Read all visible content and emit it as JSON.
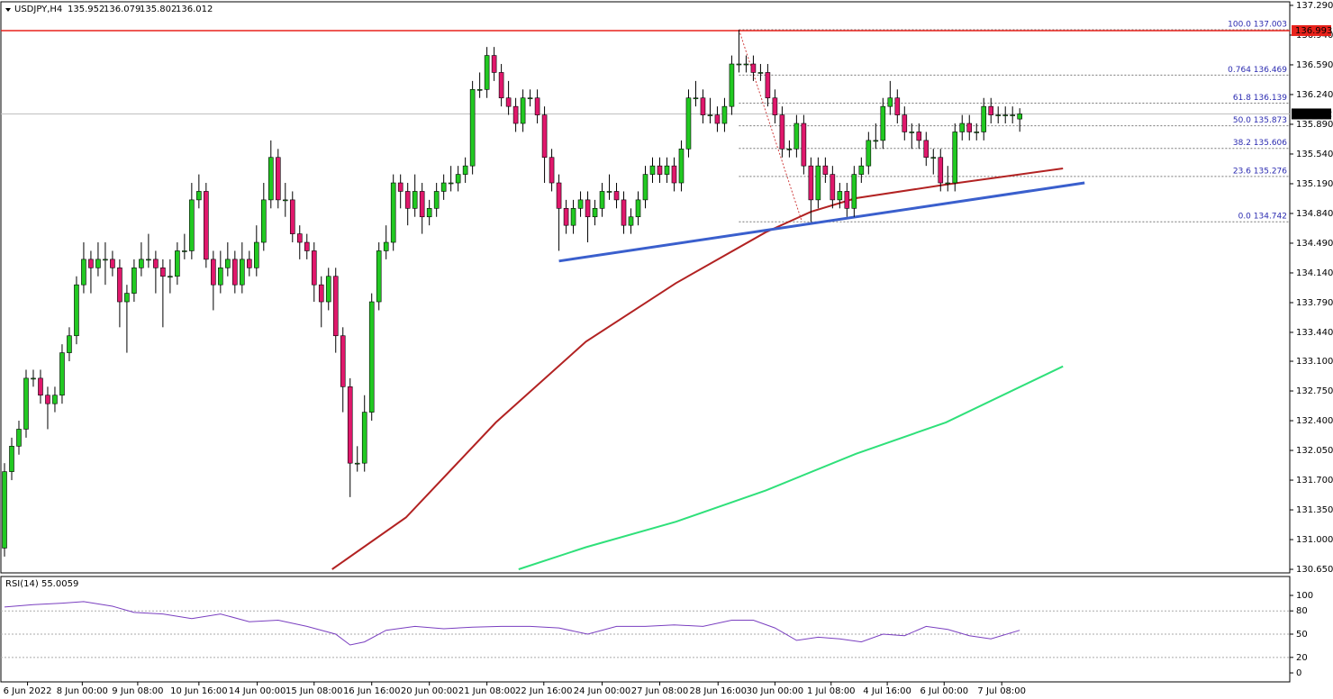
{
  "chart_data": {
    "type": "candlestick",
    "symbol": "USDJPY,H4",
    "up_color": "#22c922",
    "down_color": "#e0186c",
    "xlim": [
      -0.5,
      178.5
    ],
    "ylim": [
      130.608,
      137.332
    ],
    "yticks": [
      {
        "value": 137.29,
        "label": "137.290"
      },
      {
        "value": 136.94,
        "label": "136.940"
      },
      {
        "value": 136.59,
        "label": "136.590"
      },
      {
        "value": 136.24,
        "label": "136.240"
      },
      {
        "value": 135.89,
        "label": "135.890"
      },
      {
        "value": 135.54,
        "label": "135.540"
      },
      {
        "value": 135.19,
        "label": "135.190"
      },
      {
        "value": 134.84,
        "label": "134.840"
      },
      {
        "value": 134.49,
        "label": "134.490"
      },
      {
        "value": 134.14,
        "label": "134.140"
      },
      {
        "value": 133.79,
        "label": "133.790"
      },
      {
        "value": 133.44,
        "label": "133.440"
      },
      {
        "value": 133.1,
        "label": "133.100"
      },
      {
        "value": 132.75,
        "label": "132.750"
      },
      {
        "value": 132.4,
        "label": "132.400"
      },
      {
        "value": 132.05,
        "label": "132.050"
      },
      {
        "value": 131.7,
        "label": "131.700"
      },
      {
        "value": 131.35,
        "label": "131.350"
      },
      {
        "value": 131.0,
        "label": "131.000"
      },
      {
        "value": 130.65,
        "label": "130.650"
      }
    ],
    "xticks": [
      {
        "value": 3.2,
        "label": "6 Jun 2022"
      },
      {
        "value": 10.8,
        "label": "8 Jun 00:00"
      },
      {
        "value": 18.5,
        "label": "9 Jun 08:00"
      },
      {
        "value": 27,
        "label": "10 Jun 16:00"
      },
      {
        "value": 35.1,
        "label": "14 Jun 00:00"
      },
      {
        "value": 43,
        "label": "15 Jun 08:00"
      },
      {
        "value": 51,
        "label": "16 Jun 16:00"
      },
      {
        "value": 59,
        "label": "20 Jun 00:00"
      },
      {
        "value": 67,
        "label": "21 Jun 08:00"
      },
      {
        "value": 74.9,
        "label": "22 Jun 16:00"
      },
      {
        "value": 83,
        "label": "24 Jun 00:00"
      },
      {
        "value": 91,
        "label": "27 Jun 08:00"
      },
      {
        "value": 99.1,
        "label": "28 Jun 16:00"
      },
      {
        "value": 107,
        "label": "30 Jun 00:00"
      },
      {
        "value": 114.8,
        "label": "1 Jul 08:00"
      },
      {
        "value": 122.6,
        "label": "4 Jul 16:00"
      },
      {
        "value": 130.5,
        "label": "6 Jul 00:00"
      },
      {
        "value": 138.5,
        "label": "7 Jul 08:00"
      }
    ],
    "ohlc": [
      [
        130.9,
        131.9,
        130.8,
        131.8
      ],
      [
        131.8,
        132.2,
        131.7,
        132.1
      ],
      [
        132.1,
        132.4,
        132.0,
        132.3
      ],
      [
        132.3,
        133.0,
        132.2,
        132.9
      ],
      [
        132.9,
        133.0,
        132.8,
        132.9
      ],
      [
        132.9,
        133.0,
        132.6,
        132.7
      ],
      [
        132.7,
        132.8,
        132.3,
        132.6
      ],
      [
        132.6,
        132.8,
        132.5,
        132.7
      ],
      [
        132.7,
        133.3,
        132.6,
        133.2
      ],
      [
        133.2,
        133.5,
        133.1,
        133.4
      ],
      [
        133.4,
        134.1,
        133.3,
        134.0
      ],
      [
        134.0,
        134.5,
        133.9,
        134.3
      ],
      [
        134.3,
        134.4,
        133.9,
        134.2
      ],
      [
        134.2,
        134.5,
        134.1,
        134.3
      ],
      [
        134.3,
        134.5,
        134.0,
        134.3
      ],
      [
        134.3,
        134.4,
        134.1,
        134.2
      ],
      [
        134.2,
        134.3,
        133.5,
        133.8
      ],
      [
        133.8,
        134.0,
        133.2,
        133.9
      ],
      [
        133.9,
        134.3,
        133.8,
        134.2
      ],
      [
        134.2,
        134.5,
        134.1,
        134.3
      ],
      [
        134.3,
        134.6,
        134.2,
        134.3
      ],
      [
        134.3,
        134.4,
        133.9,
        134.2
      ],
      [
        134.2,
        134.3,
        133.5,
        134.1
      ],
      [
        134.1,
        134.3,
        133.9,
        134.1
      ],
      [
        134.1,
        134.5,
        134.0,
        134.4
      ],
      [
        134.4,
        134.6,
        134.3,
        134.4
      ],
      [
        134.4,
        135.2,
        134.3,
        135.0
      ],
      [
        135.0,
        135.3,
        134.9,
        135.1
      ],
      [
        135.1,
        135.2,
        134.2,
        134.3
      ],
      [
        134.3,
        134.4,
        133.7,
        134.0
      ],
      [
        134.0,
        134.4,
        133.9,
        134.2
      ],
      [
        134.2,
        134.5,
        134.1,
        134.3
      ],
      [
        134.3,
        134.4,
        133.9,
        134.0
      ],
      [
        134.0,
        134.5,
        133.9,
        134.3
      ],
      [
        134.3,
        134.4,
        134.1,
        134.2
      ],
      [
        134.2,
        134.7,
        134.1,
        134.5
      ],
      [
        134.5,
        135.2,
        134.4,
        135.0
      ],
      [
        135.0,
        135.7,
        134.9,
        135.5
      ],
      [
        135.5,
        135.6,
        134.9,
        135.0
      ],
      [
        135.0,
        135.2,
        134.8,
        135.0
      ],
      [
        135.0,
        135.1,
        134.5,
        134.6
      ],
      [
        134.6,
        134.7,
        134.3,
        134.5
      ],
      [
        134.5,
        134.6,
        134.3,
        134.4
      ],
      [
        134.4,
        134.5,
        133.8,
        134.0
      ],
      [
        134.0,
        134.1,
        133.5,
        133.8
      ],
      [
        133.8,
        134.2,
        133.7,
        134.1
      ],
      [
        134.1,
        134.2,
        133.2,
        133.4
      ],
      [
        133.4,
        133.5,
        132.5,
        132.8
      ],
      [
        132.8,
        132.9,
        131.5,
        131.9
      ],
      [
        131.9,
        132.1,
        131.8,
        131.9
      ],
      [
        131.9,
        132.7,
        131.8,
        132.5
      ],
      [
        132.5,
        133.9,
        132.4,
        133.8
      ],
      [
        133.8,
        134.5,
        133.7,
        134.4
      ],
      [
        134.4,
        134.7,
        134.3,
        134.5
      ],
      [
        134.5,
        135.3,
        134.4,
        135.2
      ],
      [
        135.2,
        135.3,
        134.9,
        135.1
      ],
      [
        135.1,
        135.2,
        134.7,
        134.9
      ],
      [
        134.9,
        135.3,
        134.8,
        135.1
      ],
      [
        135.1,
        135.2,
        134.6,
        134.8
      ],
      [
        134.8,
        135.0,
        134.7,
        134.9
      ],
      [
        134.9,
        135.2,
        134.8,
        135.1
      ],
      [
        135.1,
        135.3,
        135.0,
        135.2
      ],
      [
        135.2,
        135.4,
        135.1,
        135.2
      ],
      [
        135.2,
        135.4,
        135.1,
        135.3
      ],
      [
        135.3,
        135.5,
        135.2,
        135.4
      ],
      [
        135.4,
        136.4,
        135.3,
        136.3
      ],
      [
        136.3,
        136.5,
        136.2,
        136.3
      ],
      [
        136.3,
        136.8,
        136.2,
        136.7
      ],
      [
        136.7,
        136.8,
        136.4,
        136.5
      ],
      [
        136.5,
        136.6,
        136.1,
        136.2
      ],
      [
        136.2,
        136.4,
        136.0,
        136.1
      ],
      [
        136.1,
        136.2,
        135.8,
        135.9
      ],
      [
        135.9,
        136.3,
        135.8,
        136.2
      ],
      [
        136.2,
        136.3,
        136.1,
        136.2
      ],
      [
        136.2,
        136.3,
        135.9,
        136.0
      ],
      [
        136.0,
        136.1,
        135.2,
        135.5
      ],
      [
        135.5,
        135.6,
        135.1,
        135.2
      ],
      [
        135.2,
        135.3,
        134.4,
        134.9
      ],
      [
        134.9,
        135.0,
        134.6,
        134.7
      ],
      [
        134.7,
        135.0,
        134.6,
        134.9
      ],
      [
        134.9,
        135.1,
        134.8,
        135.0
      ],
      [
        135.0,
        135.1,
        134.5,
        134.8
      ],
      [
        134.8,
        135.0,
        134.7,
        134.9
      ],
      [
        134.9,
        135.2,
        134.8,
        135.1
      ],
      [
        135.1,
        135.3,
        135.0,
        135.1
      ],
      [
        135.1,
        135.2,
        134.9,
        135.0
      ],
      [
        135.0,
        135.1,
        134.6,
        134.7
      ],
      [
        134.7,
        134.9,
        134.6,
        134.8
      ],
      [
        134.8,
        135.1,
        134.7,
        135.0
      ],
      [
        135.0,
        135.4,
        134.9,
        135.3
      ],
      [
        135.3,
        135.5,
        135.2,
        135.4
      ],
      [
        135.4,
        135.5,
        135.2,
        135.3
      ],
      [
        135.3,
        135.5,
        135.2,
        135.4
      ],
      [
        135.4,
        135.5,
        135.1,
        135.2
      ],
      [
        135.2,
        135.7,
        135.1,
        135.6
      ],
      [
        135.6,
        136.3,
        135.5,
        136.2
      ],
      [
        136.2,
        136.4,
        136.1,
        136.2
      ],
      [
        136.2,
        136.3,
        135.9,
        136.0
      ],
      [
        136.0,
        136.2,
        135.9,
        136.0
      ],
      [
        136.0,
        136.1,
        135.8,
        135.9
      ],
      [
        135.9,
        136.2,
        135.8,
        136.1
      ],
      [
        136.1,
        136.7,
        136.0,
        136.6
      ],
      [
        136.6,
        137.0,
        136.5,
        136.6
      ],
      [
        136.6,
        136.7,
        136.5,
        136.6
      ],
      [
        136.6,
        136.7,
        136.4,
        136.5
      ],
      [
        136.5,
        136.6,
        136.4,
        136.5
      ],
      [
        136.5,
        136.6,
        136.1,
        136.2
      ],
      [
        136.2,
        136.3,
        135.9,
        136.0
      ],
      [
        136.0,
        136.1,
        135.5,
        135.6
      ],
      [
        135.6,
        135.7,
        135.5,
        135.6
      ],
      [
        135.6,
        136.0,
        135.5,
        135.9
      ],
      [
        135.9,
        136.0,
        135.3,
        135.4
      ],
      [
        135.4,
        135.5,
        134.74,
        135.0
      ],
      [
        135.0,
        135.5,
        134.9,
        135.4
      ],
      [
        135.4,
        135.5,
        135.2,
        135.3
      ],
      [
        135.3,
        135.4,
        134.9,
        135.0
      ],
      [
        135.0,
        135.2,
        134.9,
        135.1
      ],
      [
        135.1,
        135.2,
        134.8,
        134.9
      ],
      [
        134.9,
        135.4,
        134.8,
        135.3
      ],
      [
        135.3,
        135.5,
        135.2,
        135.4
      ],
      [
        135.4,
        135.8,
        135.3,
        135.7
      ],
      [
        135.7,
        135.9,
        135.6,
        135.7
      ],
      [
        135.7,
        136.2,
        135.6,
        136.1
      ],
      [
        136.1,
        136.4,
        136.0,
        136.2
      ],
      [
        136.2,
        136.3,
        135.9,
        136.0
      ],
      [
        136.0,
        136.1,
        135.7,
        135.8
      ],
      [
        135.8,
        135.9,
        135.6,
        135.8
      ],
      [
        135.8,
        135.9,
        135.6,
        135.7
      ],
      [
        135.7,
        135.8,
        135.4,
        135.5
      ],
      [
        135.5,
        135.6,
        135.3,
        135.5
      ],
      [
        135.5,
        135.6,
        135.1,
        135.2
      ],
      [
        135.2,
        135.4,
        135.1,
        135.2
      ],
      [
        135.2,
        135.9,
        135.1,
        135.8
      ],
      [
        135.8,
        136.0,
        135.7,
        135.9
      ],
      [
        135.9,
        136.0,
        135.7,
        135.8
      ],
      [
        135.8,
        135.9,
        135.7,
        135.8
      ],
      [
        135.8,
        136.2,
        135.7,
        136.1
      ],
      [
        136.1,
        136.2,
        135.9,
        136.0
      ],
      [
        136.0,
        136.1,
        135.9,
        136.0
      ],
      [
        136.0,
        136.1,
        135.9,
        136.0
      ],
      [
        136.0,
        136.1,
        135.9,
        136.0
      ],
      [
        135.952,
        136.079,
        135.802,
        136.012
      ]
    ],
    "lines": [
      {
        "color": "#b22222",
        "x": [
          45.5,
          55.75,
          68.25,
          80.75,
          93.25,
          105.75,
          112,
          118.25,
          130.75,
          147
        ],
        "values": [
          130.65,
          131.26,
          132.38,
          133.33,
          134.02,
          134.62,
          134.86,
          135.02,
          135.18,
          135.37
        ]
      },
      {
        "color": "#2fe07a",
        "x": [
          71.4,
          80.75,
          93.25,
          105.75,
          118.25,
          130.75,
          147
        ],
        "values": [
          130.65,
          130.91,
          131.21,
          131.58,
          132.01,
          132.38,
          133.04
        ]
      },
      {
        "color": "#3a5fcd",
        "x": [
          77,
          150
        ],
        "values": [
          134.28,
          135.2
        ]
      }
    ],
    "hline": {
      "value": 136.993,
      "color": "#e8221b"
    },
    "fib_x": [
      102,
      110.75
    ],
    "fib_levels": [
      {
        "value": 137.003,
        "label": "100.0 137.003"
      },
      {
        "value": 136.469,
        "label": "0.764 136.469"
      },
      {
        "value": 136.139,
        "label": "61.8 136.139"
      },
      {
        "value": 135.873,
        "label": "50.0 135.873"
      },
      {
        "value": 135.606,
        "label": "38.2 135.606"
      },
      {
        "value": 135.276,
        "label": "23.6 135.276"
      },
      {
        "value": 134.742,
        "label": "0.0 134.742"
      }
    ],
    "rsi": {
      "title": "RSI(14) 55.0059",
      "color": "#7a3fc0",
      "ylim": [
        -11.6,
        124.4
      ],
      "yticks": [
        100,
        80,
        50,
        20,
        0
      ],
      "levels": [
        80,
        50,
        20
      ],
      "x": [
        0,
        4,
        8,
        11,
        15,
        18,
        22,
        26,
        30,
        34,
        38,
        42,
        46,
        48,
        50,
        53,
        57,
        61,
        65,
        69,
        73,
        77,
        81,
        85,
        89,
        93,
        97,
        101,
        104,
        107,
        110,
        113,
        116,
        119,
        122,
        125,
        128,
        131,
        134,
        137,
        141
      ],
      "values": [
        85,
        88,
        90,
        92,
        86,
        78,
        76,
        70,
        76,
        66,
        68,
        60,
        50,
        36,
        40,
        55,
        60,
        57,
        59,
        60,
        60,
        58,
        50,
        60,
        60,
        62,
        60,
        68,
        68,
        58,
        42,
        46,
        44,
        40,
        50,
        48,
        60,
        56,
        48,
        44,
        55
      ]
    }
  }
}
